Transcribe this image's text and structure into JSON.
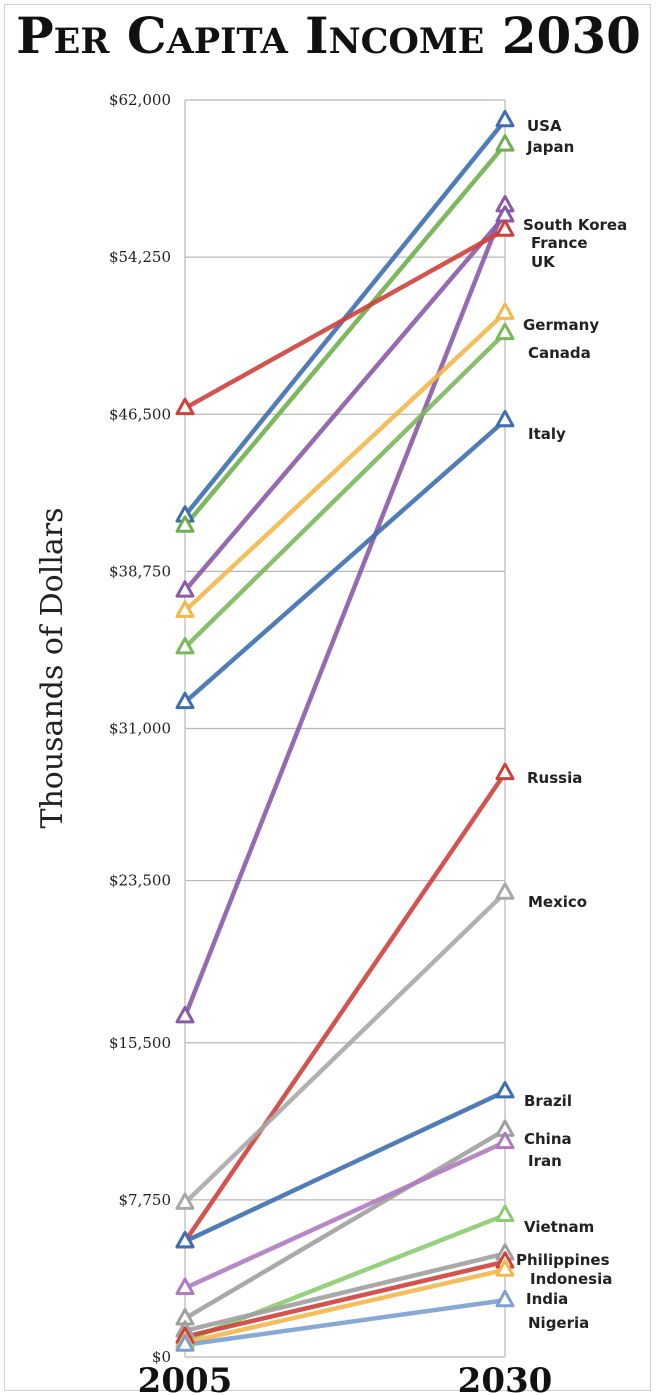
{
  "chart_data": {
    "type": "line",
    "title": "Per Capita Income 2030",
    "ylabel": "Thousands of Dollars",
    "x": [
      "2005",
      "2030"
    ],
    "ylim": [
      0,
      62000
    ],
    "yticks": [
      "$0",
      "$7,750",
      "$15,500",
      "$23,500",
      "$31,000",
      "$38,750",
      "$46,500",
      "$54,250",
      "$62,000"
    ],
    "ytick_values": [
      0,
      7750,
      15500,
      23500,
      31000,
      38750,
      46500,
      54250,
      62000
    ],
    "grid": true,
    "series": [
      {
        "name": "USA",
        "values": [
          41500,
          61000
        ],
        "color": "#3d6fb0"
      },
      {
        "name": "Japan",
        "values": [
          41000,
          59800
        ],
        "color": "#6fb04e"
      },
      {
        "name": "South Korea",
        "values": [
          16800,
          56800
        ],
        "color": "#8a5aa8"
      },
      {
        "name": "France",
        "values": [
          37800,
          56300
        ],
        "color": "#8a5aa8"
      },
      {
        "name": "UK",
        "values": [
          46800,
          55600
        ],
        "color": "#d0403b"
      },
      {
        "name": "Germany",
        "values": [
          36800,
          51500
        ],
        "color": "#f4b74a"
      },
      {
        "name": "Canada",
        "values": [
          35000,
          50500
        ],
        "color": "#7cb85c"
      },
      {
        "name": "Italy",
        "values": [
          32300,
          46200
        ],
        "color": "#3d6fb0"
      },
      {
        "name": "Russia",
        "values": [
          5700,
          28800
        ],
        "color": "#d0403b"
      },
      {
        "name": "Mexico",
        "values": [
          7600,
          22900
        ],
        "color": "#a8a8a8"
      },
      {
        "name": "Brazil",
        "values": [
          5700,
          13100
        ],
        "color": "#3d6fb0"
      },
      {
        "name": "China",
        "values": [
          1900,
          11200
        ],
        "color": "#a0a0a0"
      },
      {
        "name": "Iran",
        "values": [
          3400,
          10600
        ],
        "color": "#b07ac0"
      },
      {
        "name": "Vietnam",
        "values": [
          800,
          7000
        ],
        "color": "#8ccc70"
      },
      {
        "name": "Philippines",
        "values": [
          1300,
          5100
        ],
        "color": "#a0a0a0"
      },
      {
        "name": "Indonesia",
        "values": [
          1000,
          4700
        ],
        "color": "#d0403b"
      },
      {
        "name": "India",
        "values": [
          700,
          4300
        ],
        "color": "#f4b74a"
      },
      {
        "name": "Nigeria",
        "values": [
          600,
          2800
        ],
        "color": "#7aa0d0"
      }
    ]
  }
}
